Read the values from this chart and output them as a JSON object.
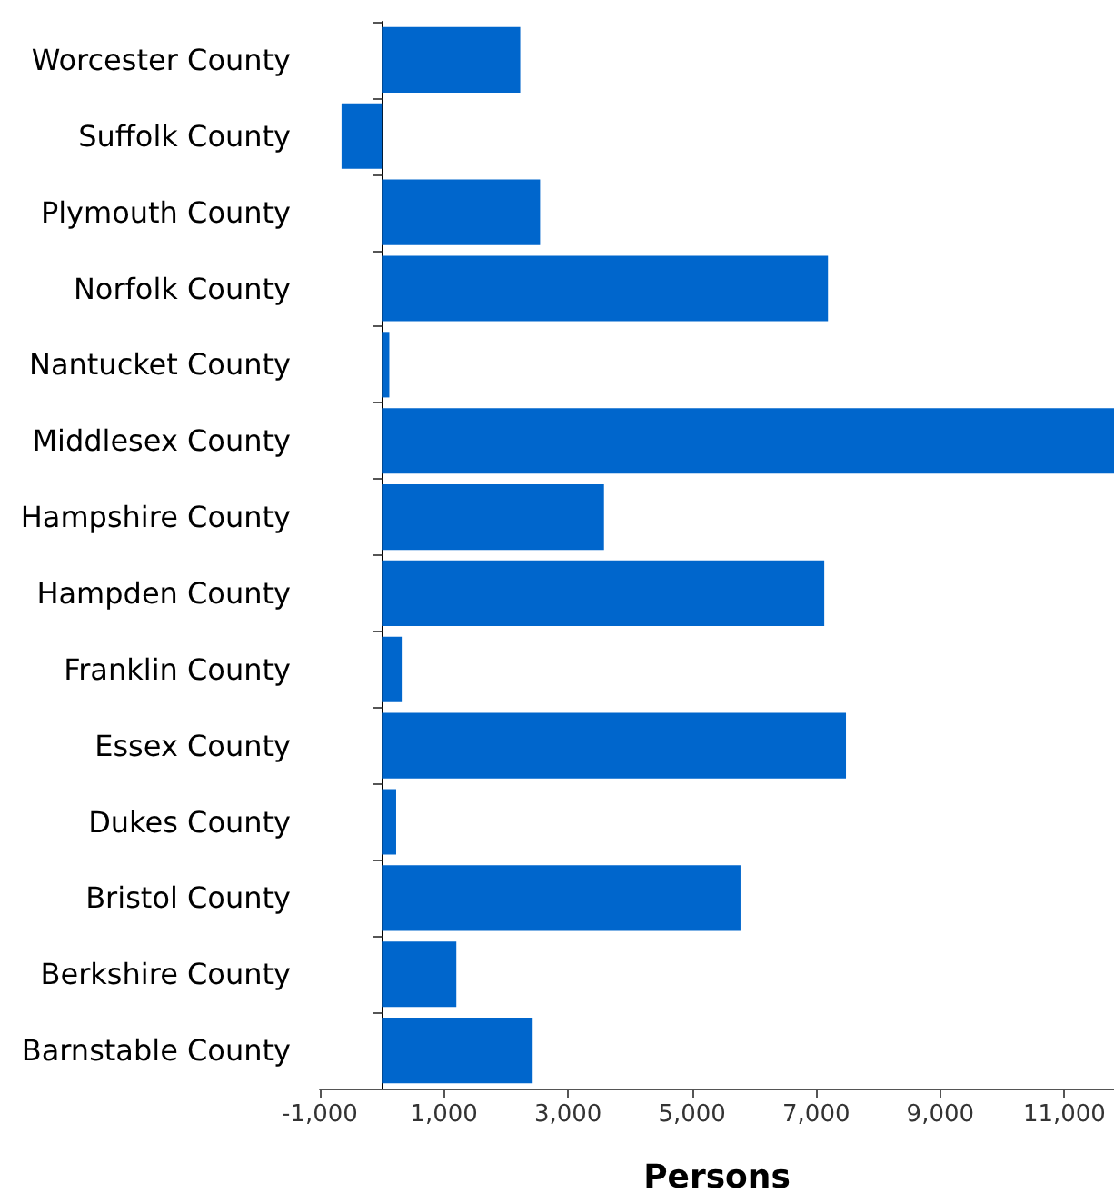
{
  "chart_data": {
    "type": "bar",
    "orientation": "horizontal",
    "xlabel": "Persons",
    "categories": [
      "Worcester County",
      "Suffolk County",
      "Plymouth County",
      "Norfolk County",
      "Nantucket County",
      "Middlesex County",
      "Hampshire County",
      "Hampden County",
      "Franklin County",
      "Essex County",
      "Dukes County",
      "Bristol County",
      "Berkshire County",
      "Barnstable County"
    ],
    "values": [
      2230,
      -650,
      2550,
      7190,
      120,
      11800,
      3580,
      7130,
      320,
      7480,
      230,
      5780,
      1200,
      2430
    ],
    "color": "#0066cc",
    "xlim": [
      -1000,
      11800
    ],
    "xticks": [
      {
        "value": -1000,
        "label": "-1,000"
      },
      {
        "value": 1000,
        "label": "1,000"
      },
      {
        "value": 3000,
        "label": "3,000"
      },
      {
        "value": 5000,
        "label": "5,000"
      },
      {
        "value": 7000,
        "label": "7,000"
      },
      {
        "value": 9000,
        "label": "9,000"
      },
      {
        "value": 11000,
        "label": "11,000"
      }
    ],
    "grid": false
  }
}
